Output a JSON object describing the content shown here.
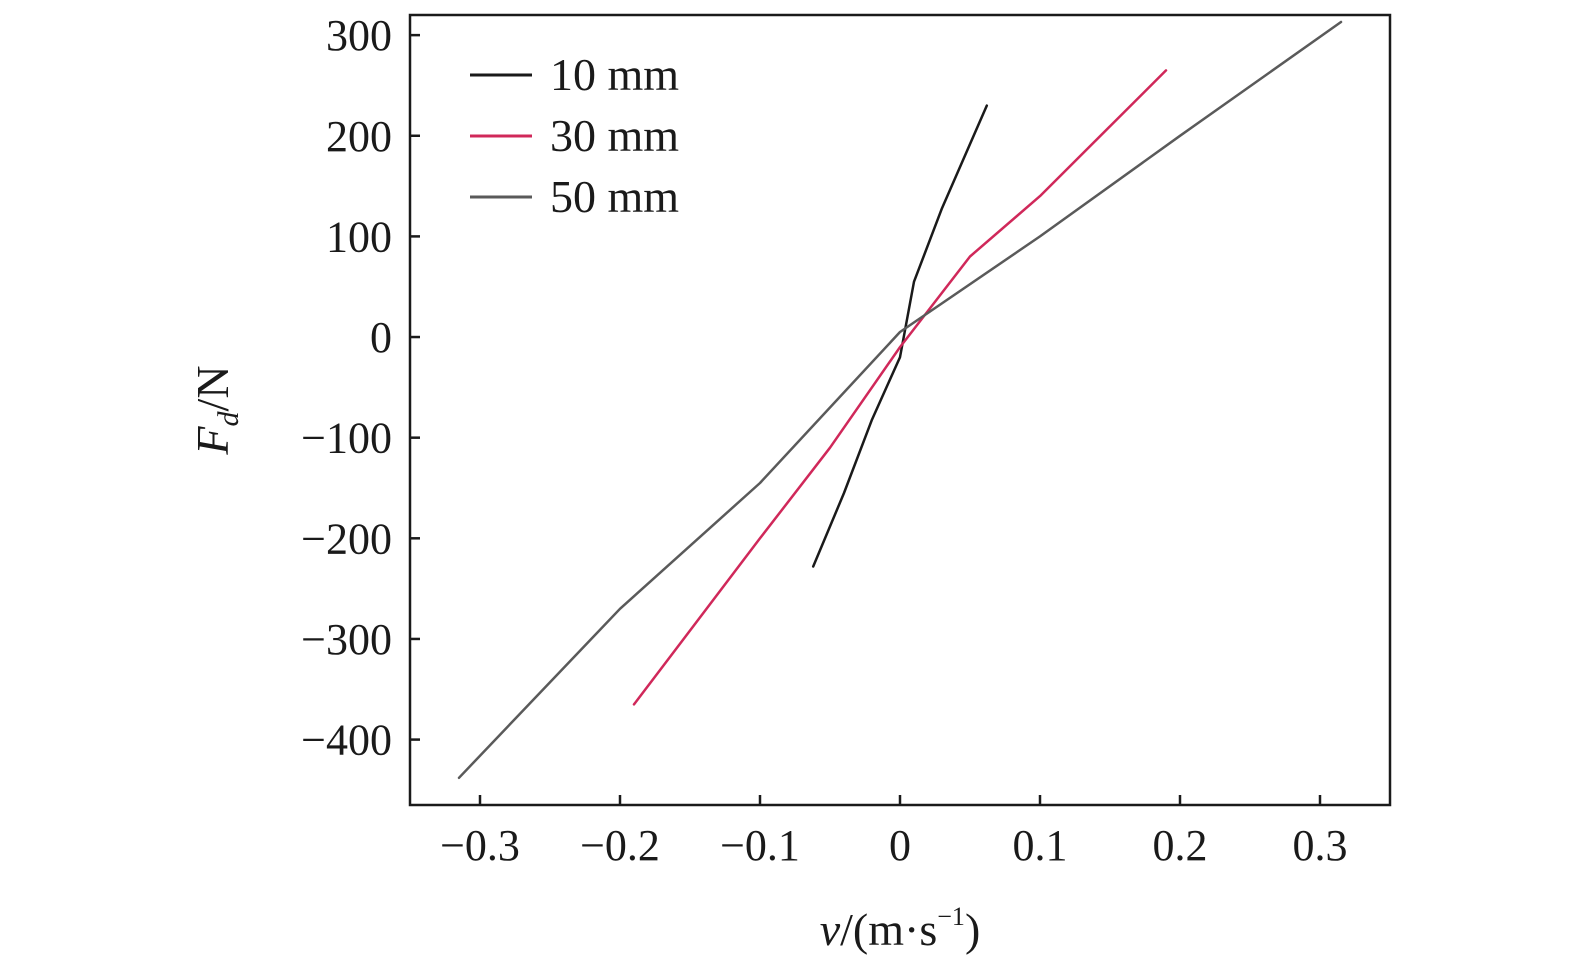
{
  "chart_data": {
    "type": "line",
    "title": "",
    "xlabel": {
      "var": "v",
      "unit_prefix": "/(m·s",
      "unit_exp": "−1",
      "unit_suffix": ")"
    },
    "ylabel": {
      "var": "F",
      "sub": "d",
      "unit": "/N"
    },
    "xlim": [
      -0.35,
      0.35
    ],
    "ylim": [
      -465,
      320
    ],
    "xticks": [
      -0.3,
      -0.2,
      -0.1,
      0,
      0.1,
      0.2,
      0.3
    ],
    "xtick_labels": [
      "−0.3",
      "−0.2",
      "−0.1",
      "0",
      "0.1",
      "0.2",
      "0.3"
    ],
    "yticks": [
      300,
      200,
      100,
      0,
      -100,
      -200,
      -300,
      -400
    ],
    "ytick_labels": [
      "300",
      "200",
      "100",
      "0",
      "−100",
      "−200",
      "−300",
      "−400"
    ],
    "grid": false,
    "legend_position": "top-left",
    "series": [
      {
        "name": "10 mm",
        "color": "#1a1a1a",
        "x": [
          -0.062,
          -0.04,
          -0.02,
          0.0,
          0.01,
          0.03,
          0.062
        ],
        "y": [
          -228,
          -155,
          -82,
          -20,
          55,
          128,
          230
        ]
      },
      {
        "name": "30 mm",
        "color": "#d0285a",
        "x": [
          -0.19,
          -0.1,
          -0.05,
          0.0,
          0.05,
          0.1,
          0.19
        ],
        "y": [
          -365,
          -200,
          -110,
          -10,
          80,
          140,
          265
        ]
      },
      {
        "name": "50 mm",
        "color": "#5a5a5a",
        "x": [
          -0.315,
          -0.2,
          -0.1,
          0.0,
          0.1,
          0.2,
          0.315
        ],
        "y": [
          -438,
          -270,
          -145,
          5,
          100,
          200,
          313
        ]
      }
    ]
  }
}
